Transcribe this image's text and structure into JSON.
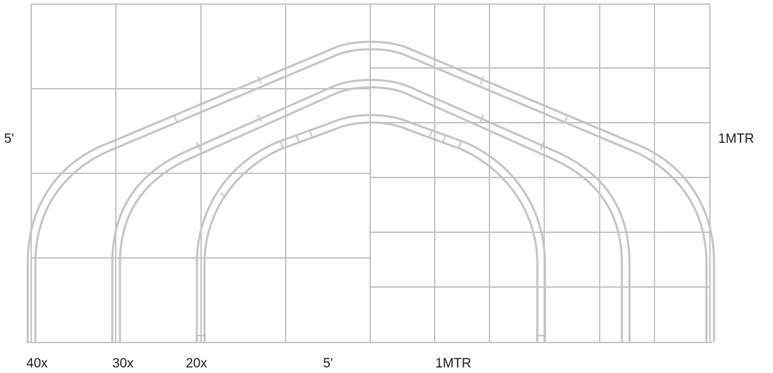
{
  "labels": {
    "left_scale": "5'",
    "right_scale": "1MTR",
    "bottom_40x": "40x",
    "bottom_30x": "30x",
    "bottom_20x": "20x",
    "bottom_feet": "5'",
    "bottom_metric": "1MTR"
  },
  "colors": {
    "line": "#c4c4c4",
    "text": "#1a1a1a",
    "background": "#ffffff"
  }
}
